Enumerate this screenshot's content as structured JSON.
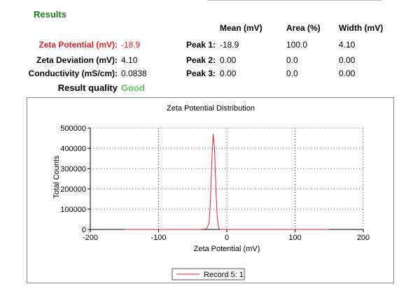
{
  "results": {
    "title": "Results",
    "rows": [
      {
        "label": "Zeta Potential (mV):",
        "value": "-18.9"
      },
      {
        "label": "Zeta Deviation (mV):",
        "value": "4.10"
      },
      {
        "label": "Conductivity (mS/cm):",
        "value": "0.0838"
      }
    ],
    "quality_label": "Result quality",
    "quality_value": "Good"
  },
  "peaks": {
    "headers": [
      "Mean (mV)",
      "Area (%)",
      "Width (mV)"
    ],
    "rows": [
      {
        "label": "Peak 1:",
        "mean": "-18.9",
        "area": "100.0",
        "width": "4.10"
      },
      {
        "label": "Peak 2:",
        "mean": "0.00",
        "area": "0.0",
        "width": "0.00"
      },
      {
        "label": "Peak 3:",
        "mean": "0.00",
        "area": "0.0",
        "width": "0.00"
      }
    ]
  },
  "colors": {
    "accent_red": "#e8202a",
    "title_green": "#1a7a1a",
    "good_green": "#5cc85c",
    "series": "#e8202a"
  },
  "chart_data": {
    "type": "line",
    "title": "Zeta Potential Distribution",
    "xlabel": "Zeta Potential (mV)",
    "ylabel": "Total Counts",
    "xlim": [
      -200,
      200
    ],
    "ylim": [
      0,
      500000
    ],
    "xticks": [
      -200,
      -100,
      0,
      100,
      200
    ],
    "yticks": [
      0,
      100000,
      200000,
      300000,
      400000,
      500000
    ],
    "grid": true,
    "legend": "bottom-center",
    "series": [
      {
        "name": "Record 5: 1",
        "color": "#e8202a",
        "x": [
          -150,
          -40,
          -30,
          -26,
          -24,
          -22,
          -20,
          -18,
          -16,
          -14,
          -12,
          -10,
          0,
          50,
          100,
          150
        ],
        "y": [
          0,
          0,
          2000,
          30000,
          140000,
          330000,
          470000,
          400000,
          200000,
          60000,
          8000,
          0,
          0,
          0,
          0,
          0
        ]
      }
    ]
  }
}
